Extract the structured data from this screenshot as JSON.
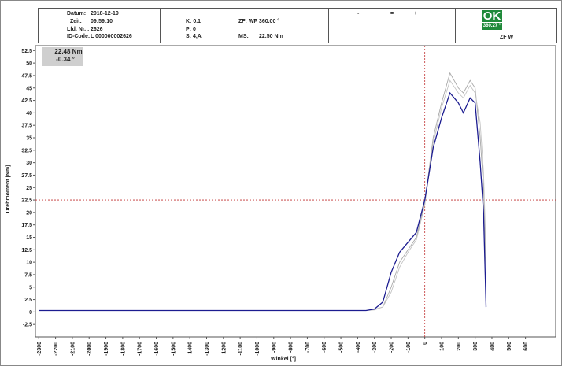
{
  "header": {
    "date_label": "Datum:",
    "date": "2018-12-19",
    "time_label": "Zeit:",
    "time": "09:59:10",
    "run_label": "Lfd. Nr. :",
    "run": "2626",
    "id_label": "ID-Code:",
    "id": "L 000000002626",
    "k": "K: 0.1",
    "p": "P: 0",
    "s": "S: 4,A",
    "zf": "ZF: WP 360.00  °",
    "ms_label": "MS:",
    "ms": "22.50 Nm",
    "minus": "-",
    "equal": "=",
    "plus": "+"
  },
  "result": {
    "status": "OK",
    "angle": "360.27 °",
    "mode": "ZF W"
  },
  "chart_data": {
    "type": "line",
    "xlabel": "Winkel [°]",
    "ylabel": "Drehmoment [Nm]",
    "readout": {
      "torque": "22.48 Nm",
      "angle": "-0.34 °"
    },
    "crosshair": {
      "x": 0,
      "y": 22.5
    },
    "xlim": [
      -2320,
      780
    ],
    "ylim": [
      -5,
      53.5
    ],
    "xticks": [
      -2300,
      -2200,
      -2100,
      -2000,
      -1900,
      -1800,
      -1700,
      -1600,
      -1500,
      -1400,
      -1300,
      -1200,
      -1100,
      -1000,
      -900,
      -800,
      -700,
      -600,
      -500,
      -400,
      -300,
      -200,
      -100,
      0,
      100,
      200,
      300,
      400,
      500,
      600
    ],
    "yticks": [
      -2.5,
      0,
      2.5,
      5,
      7.5,
      10,
      12.5,
      15,
      17.5,
      20,
      22.5,
      25,
      27.5,
      30,
      32.5,
      35,
      37.5,
      40,
      42.5,
      45,
      47.5,
      50,
      52.5
    ],
    "x": [
      -2300,
      -2000,
      -1500,
      -1000,
      -500,
      -350,
      -300,
      -250,
      -200,
      -150,
      -100,
      -50,
      0,
      50,
      100,
      150,
      200,
      230,
      270,
      300,
      330,
      350,
      365
    ],
    "series": [
      {
        "color": "#a8a8a8",
        "values": [
          0.3,
          0.3,
          0.3,
          0.3,
          0.3,
          0.3,
          0.5,
          1,
          5,
          10,
          12.5,
          15,
          22,
          35,
          42,
          48,
          45,
          44,
          46.5,
          45,
          35,
          25,
          8
        ]
      },
      {
        "color": "#c4c4c4",
        "values": [
          0.3,
          0.3,
          0.3,
          0.3,
          0.3,
          0.3,
          0.4,
          1,
          4,
          9,
          12,
          14.5,
          21.5,
          34,
          41,
          46.5,
          44,
          43,
          45.5,
          44,
          38,
          28,
          12
        ]
      },
      {
        "color": "#1c1c90",
        "values": [
          0.3,
          0.3,
          0.3,
          0.3,
          0.3,
          0.3,
          0.6,
          2,
          8,
          12,
          14,
          16,
          22.5,
          33,
          39,
          44,
          42,
          40,
          43,
          42,
          30,
          20,
          1
        ]
      }
    ]
  }
}
